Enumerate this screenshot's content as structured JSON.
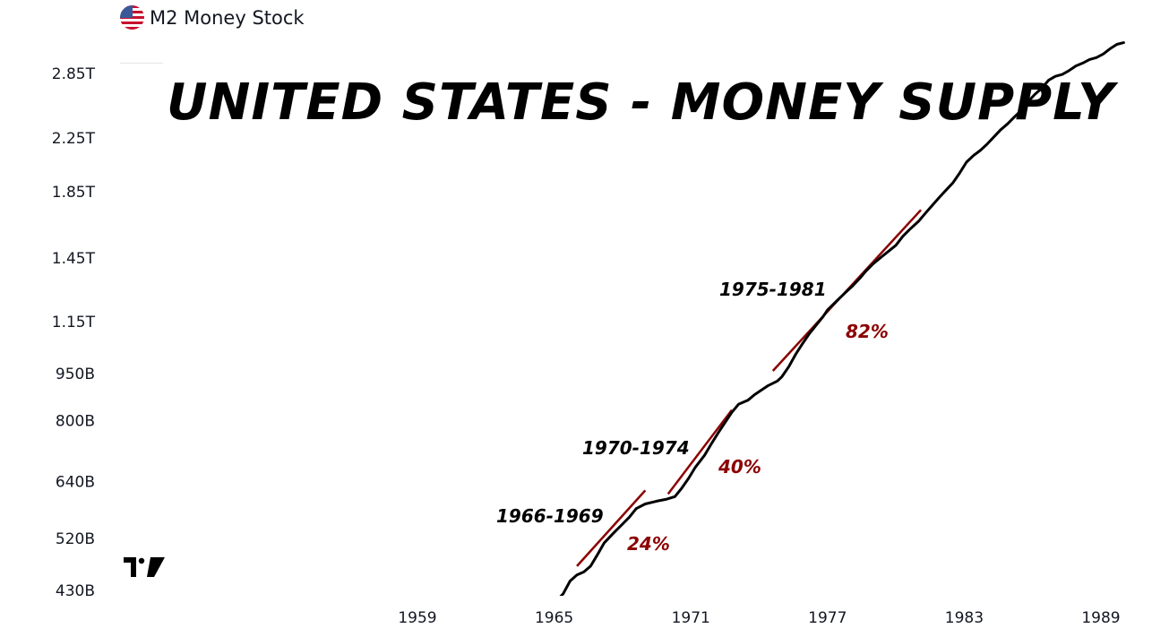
{
  "legend": {
    "label": "M2 Money Stock",
    "flag_icon": "us-flag-icon"
  },
  "title": "UNITED STATES - MONEY SUPPLY",
  "colors": {
    "line": "#000000",
    "annotation": "#8b0000",
    "text": "#000000",
    "axis_text": "#131722"
  },
  "chart_data": {
    "type": "line",
    "title": "UNITED STATES - MONEY SUPPLY",
    "xlabel": "",
    "ylabel": "",
    "y_scale": "log",
    "x_range": [
      1953,
      1990
    ],
    "y_range_billions": [
      410,
      3300
    ],
    "grid": false,
    "x_ticks": [
      "1959",
      "1965",
      "1971",
      "1977",
      "1983",
      "1989"
    ],
    "y_ticks": [
      "430B",
      "520B",
      "640B",
      "800B",
      "950B",
      "1.15T",
      "1.45T",
      "1.85T",
      "2.25T",
      "2.85T"
    ],
    "series": [
      {
        "name": "M2 Money Stock",
        "unit": "billions USD",
        "points": [
          [
            1965.0,
            410
          ],
          [
            1965.4,
            425
          ],
          [
            1965.7,
            445
          ],
          [
            1966.0,
            455
          ],
          [
            1966.3,
            460
          ],
          [
            1966.6,
            470
          ],
          [
            1966.9,
            490
          ],
          [
            1967.2,
            512
          ],
          [
            1967.6,
            530
          ],
          [
            1968.0,
            548
          ],
          [
            1968.3,
            562
          ],
          [
            1968.6,
            580
          ],
          [
            1969.0,
            590
          ],
          [
            1969.5,
            596
          ],
          [
            1969.9,
            600
          ],
          [
            1970.3,
            606
          ],
          [
            1970.6,
            625
          ],
          [
            1970.9,
            648
          ],
          [
            1971.2,
            675
          ],
          [
            1971.6,
            705
          ],
          [
            1971.9,
            735
          ],
          [
            1972.2,
            765
          ],
          [
            1972.5,
            795
          ],
          [
            1972.8,
            825
          ],
          [
            1973.1,
            850
          ],
          [
            1973.5,
            862
          ],
          [
            1973.8,
            880
          ],
          [
            1974.1,
            895
          ],
          [
            1974.4,
            910
          ],
          [
            1974.8,
            925
          ],
          [
            1975.0,
            940
          ],
          [
            1975.3,
            975
          ],
          [
            1975.6,
            1020
          ],
          [
            1975.9,
            1060
          ],
          [
            1976.2,
            1100
          ],
          [
            1976.5,
            1135
          ],
          [
            1976.8,
            1170
          ],
          [
            1977.0,
            1200
          ],
          [
            1977.4,
            1240
          ],
          [
            1977.8,
            1280
          ],
          [
            1978.1,
            1310
          ],
          [
            1978.4,
            1345
          ],
          [
            1978.7,
            1385
          ],
          [
            1979.0,
            1420
          ],
          [
            1979.4,
            1460
          ],
          [
            1979.7,
            1490
          ],
          [
            1980.0,
            1520
          ],
          [
            1980.3,
            1570
          ],
          [
            1980.6,
            1610
          ],
          [
            1981.0,
            1660
          ],
          [
            1981.3,
            1710
          ],
          [
            1981.6,
            1760
          ],
          [
            1981.9,
            1810
          ],
          [
            1982.2,
            1860
          ],
          [
            1982.5,
            1910
          ],
          [
            1982.8,
            1980
          ],
          [
            1983.1,
            2060
          ],
          [
            1983.4,
            2110
          ],
          [
            1983.7,
            2150
          ],
          [
            1984.0,
            2200
          ],
          [
            1984.3,
            2260
          ],
          [
            1984.6,
            2320
          ],
          [
            1984.9,
            2370
          ],
          [
            1985.2,
            2430
          ],
          [
            1985.5,
            2490
          ],
          [
            1985.8,
            2570
          ],
          [
            1986.1,
            2640
          ],
          [
            1986.4,
            2700
          ],
          [
            1986.7,
            2780
          ],
          [
            1987.0,
            2820
          ],
          [
            1987.3,
            2840
          ],
          [
            1987.6,
            2880
          ],
          [
            1987.9,
            2930
          ],
          [
            1988.2,
            2960
          ],
          [
            1988.5,
            3000
          ],
          [
            1988.8,
            3020
          ],
          [
            1989.1,
            3060
          ],
          [
            1989.4,
            3120
          ],
          [
            1989.7,
            3170
          ],
          [
            1990.0,
            3190
          ]
        ]
      }
    ],
    "annotations": [
      {
        "period": "1966-1969",
        "change": "24%",
        "trend_from": [
          1966.0,
          470
        ],
        "trend_to": [
          1969.0,
          620
        ]
      },
      {
        "period": "1970-1974",
        "change": "40%",
        "trend_from": [
          1970.0,
          612
        ],
        "trend_to": [
          1972.8,
          832
        ]
      },
      {
        "period": "1975-1981",
        "change": "82%",
        "trend_from": [
          1974.6,
          960
        ],
        "trend_to": [
          1981.1,
          1730
        ]
      }
    ]
  }
}
